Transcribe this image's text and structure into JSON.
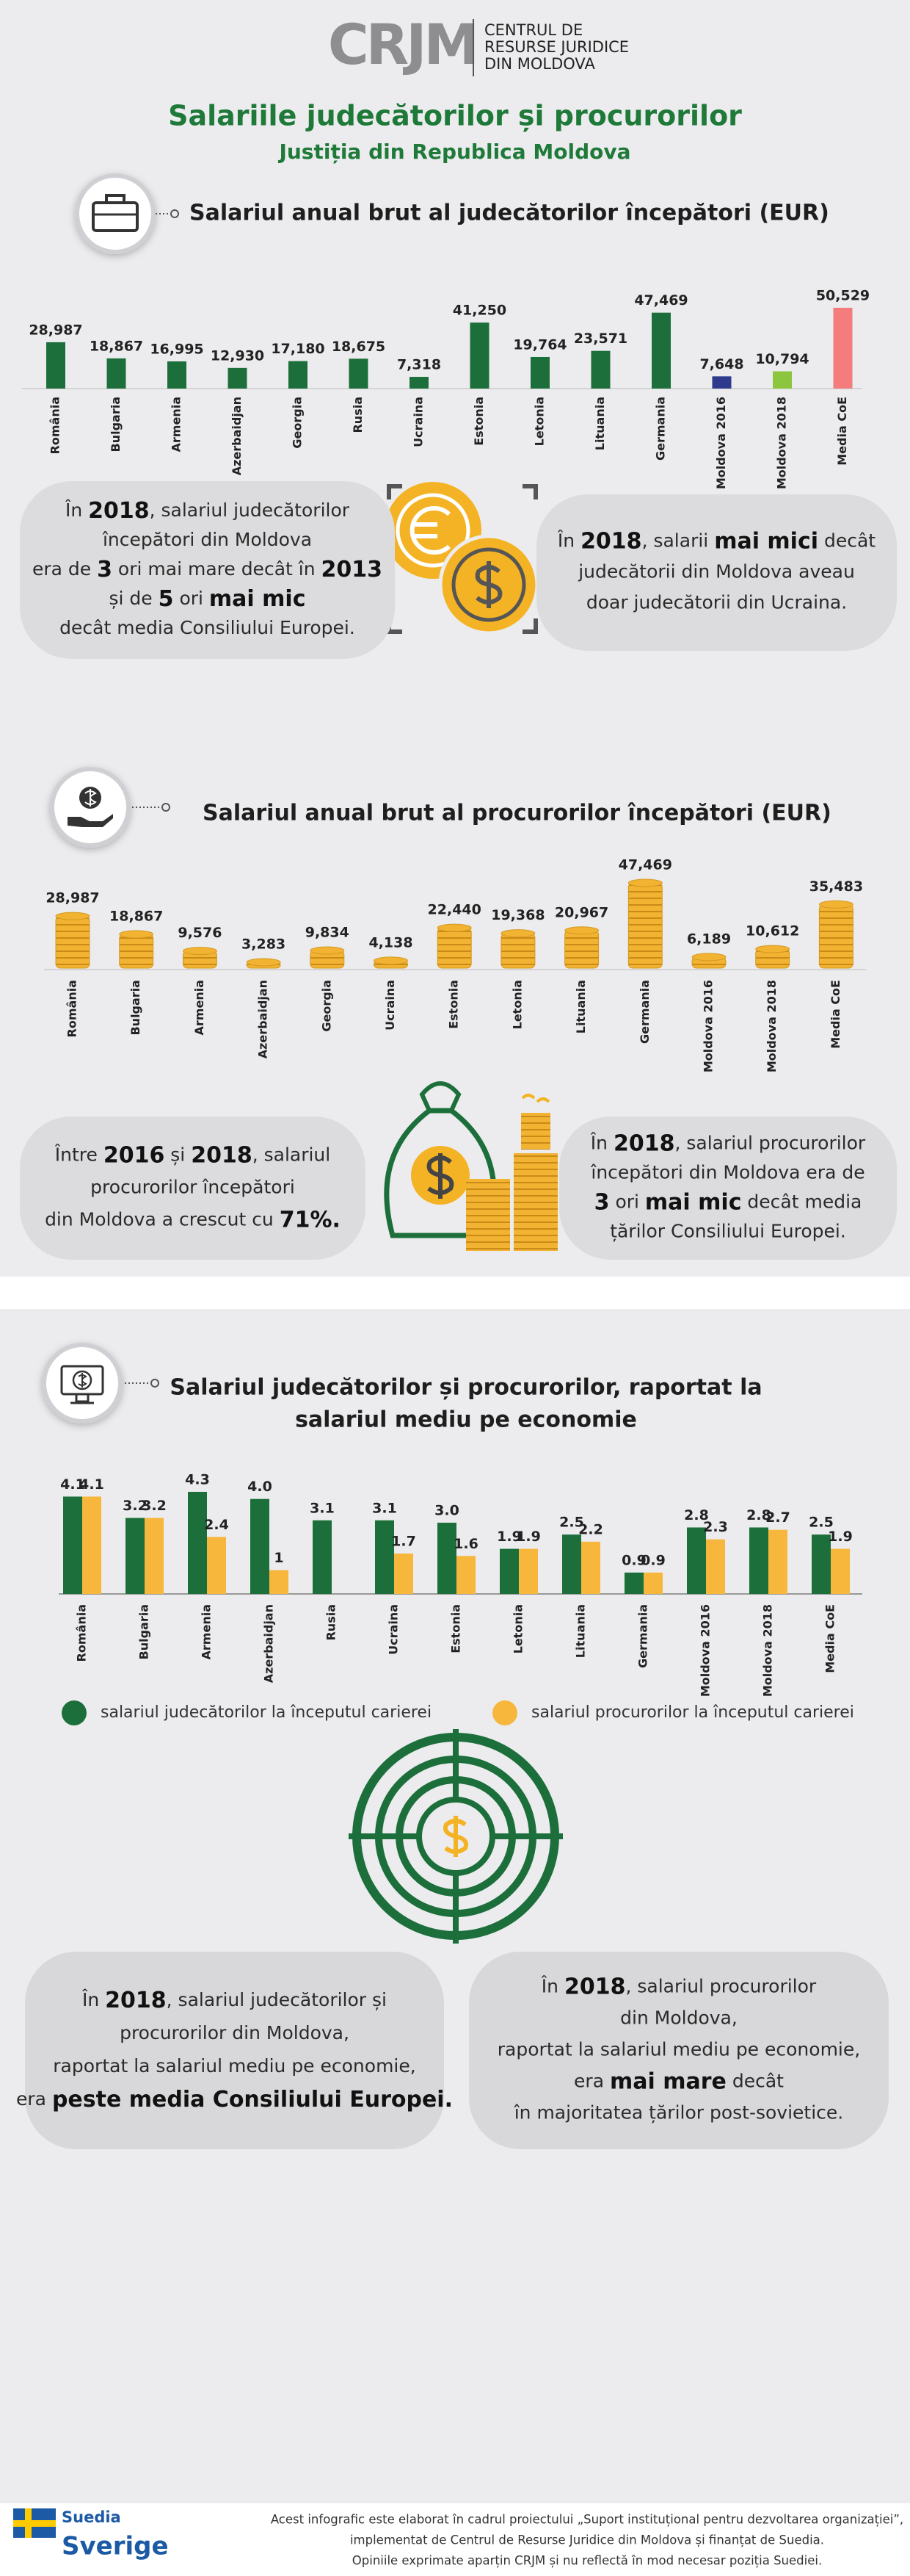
{
  "header": {
    "logo": "CRJM",
    "org_lines": [
      "CENTRUL DE",
      "RESURSE JURIDICE",
      "DIN MOLDOVA"
    ],
    "title": "Salariile judecătorilor și procurorilor",
    "subtitle": "Justiția din Republica Moldova"
  },
  "chart_data": [
    {
      "type": "bar",
      "title": "Salariul anual brut al judecătorilor începători (EUR)",
      "categories": [
        "România",
        "Bulgaria",
        "Armenia",
        "Azerbaidjan",
        "Georgia",
        "Rusia",
        "Ucraina",
        "Estonia",
        "Letonia",
        "Lituania",
        "Germania",
        "Moldova 2016",
        "Moldova 2018",
        "Media CoE"
      ],
      "values": [
        28987,
        18867,
        16995,
        12930,
        17180,
        18675,
        7318,
        41250,
        19764,
        23571,
        47469,
        7648,
        10794,
        50529
      ],
      "value_labels": [
        "28,987",
        "18,867",
        "16,995",
        "12,930",
        "17,180",
        "18,675",
        "7,318",
        "41,250",
        "19,764",
        "23,571",
        "47,469",
        "7,648",
        "10,794",
        "50,529"
      ],
      "colors": [
        "#1c6f3b",
        "#1c6f3b",
        "#1c6f3b",
        "#1c6f3b",
        "#1c6f3b",
        "#1c6f3b",
        "#1c6f3b",
        "#1c6f3b",
        "#1c6f3b",
        "#1c6f3b",
        "#1c6f3b",
        "#2e3a8c",
        "#8cc63f",
        "#f47c7c"
      ]
    },
    {
      "type": "coin-bar",
      "title": "Salariul anual brut al procurorilor începători (EUR)",
      "categories": [
        "România",
        "Bulgaria",
        "Armenia",
        "Azerbaidjan",
        "Georgia",
        "Ucraina",
        "Estonia",
        "Letonia",
        "Lituania",
        "Germania",
        "Moldova 2016",
        "Moldova 2018",
        "Media CoE"
      ],
      "values": [
        28987,
        18867,
        9576,
        3283,
        9834,
        4138,
        22440,
        19368,
        20967,
        47469,
        6189,
        10612,
        35483
      ],
      "value_labels": [
        "28,987",
        "18,867",
        "9,576",
        "3,283",
        "9,834",
        "4,138",
        "22,440",
        "19,368",
        "20,967",
        "47,469",
        "6,189",
        "10,612",
        "35,483"
      ],
      "color": "#f2b232"
    },
    {
      "type": "grouped-bar",
      "title": [
        "Salariul judecătorilor și procurorilor, raportat la",
        "salariul mediu pe economie"
      ],
      "categories": [
        "România",
        "Bulgaria",
        "Armenia",
        "Azerbaidjan",
        "Rusia",
        "Ucraina",
        "Estonia",
        "Letonia",
        "Lituania",
        "Germania",
        "Moldova 2016",
        "Moldova 2018",
        "Media CoE"
      ],
      "series": [
        {
          "name": "salariul judecătorilor la începutul carierei",
          "color": "#1c6f3b",
          "values": [
            4.1,
            3.2,
            4.3,
            4.0,
            3.1,
            3.1,
            3.0,
            1.9,
            2.5,
            0.9,
            2.8,
            2.8,
            2.5
          ],
          "value_labels": [
            "4.1",
            "3.2",
            "4.3",
            "4.0",
            "3.1",
            "3.1",
            "3.0",
            "1.9",
            "2.5",
            "0.9",
            "2.8",
            "2.8",
            "2.5"
          ]
        },
        {
          "name": "salariul procurorilor la începutul carierei",
          "color": "#f7b63c",
          "values": [
            4.1,
            3.2,
            2.4,
            1,
            null,
            1.7,
            1.6,
            1.9,
            2.2,
            0.9,
            2.3,
            2.7,
            1.9
          ]
        }
      ],
      "legend": "bottom"
    }
  ],
  "callouts": [
    {
      "lines": [
        [
          "În ",
          {
            "text": "2018",
            "bold": true
          },
          ", salariul judecătorilor"
        ],
        [
          "începători  din Moldova"
        ],
        [
          "era de ",
          {
            "text": "3",
            "bold": true
          },
          " ori mai mare decât în ",
          {
            "text": "2013",
            "bold": true
          }
        ],
        [
          "și de ",
          {
            "text": "5",
            "bold": true
          },
          " ori ",
          {
            "text": "mai mic",
            "bold": true
          }
        ],
        [
          "decât media Consiliului Europei."
        ]
      ]
    },
    {
      "lines": [
        [
          "În ",
          {
            "text": "2018",
            "bold": true
          },
          ", salarii ",
          {
            "text": "mai mici",
            "bold": true
          },
          " decât"
        ],
        [
          "judecătorii din Moldova aveau"
        ],
        [
          "doar judecătorii din Ucraina."
        ]
      ]
    },
    {
      "lines": [
        [
          "Între ",
          {
            "text": "2016",
            "bold": true
          },
          " și ",
          {
            "text": "2018",
            "bold": true
          },
          ", salariul"
        ],
        [
          "procurorilor începători"
        ],
        [
          "din Moldova a crescut cu ",
          {
            "text": "71%.",
            "bold": true
          }
        ]
      ]
    },
    {
      "lines": [
        [
          "În ",
          {
            "text": "2018",
            "bold": true
          },
          ", salariul procurorilor"
        ],
        [
          "începători din Moldova era de"
        ],
        [
          {
            "text": "3",
            "bold": true
          },
          " ori ",
          {
            "text": "mai mic",
            "bold": true
          },
          "  decât media"
        ],
        [
          "țărilor Consiliului Europei."
        ]
      ]
    },
    {
      "lines": [
        [
          "În ",
          {
            "text": "2018",
            "bold": true
          },
          ", salariul judecătorilor și"
        ],
        [
          "procurorilor din Moldova,"
        ],
        [
          "raportat la salariul mediu pe economie,"
        ],
        [
          "era ",
          {
            "text": "peste media Consiliului Europei.",
            "bold": true
          }
        ]
      ]
    },
    {
      "lines": [
        [
          "În ",
          {
            "text": "2018",
            "bold": true
          },
          ", salariul procurorilor"
        ],
        [
          "din Moldova,"
        ],
        [
          "raportat la salariul mediu pe economie,"
        ],
        [
          "era ",
          {
            "text": "mai mare",
            "bold": true
          },
          " decât"
        ],
        [
          "în majoritatea țărilor post-sovietice."
        ]
      ]
    }
  ],
  "footer": {
    "flag_label": "Suedia",
    "flag_name": "Sverige",
    "lines": [
      "Acest infografic este elaborat în cadrul proiectului „Suport instituțional pentru dezvoltarea organizației”,",
      "implementat de Centrul de Resurse Juridice din Moldova și finanțat de Suedia.",
      "Opiniile exprimate aparțin CRJM și nu reflectă în mod necesar poziția Suediei."
    ]
  }
}
